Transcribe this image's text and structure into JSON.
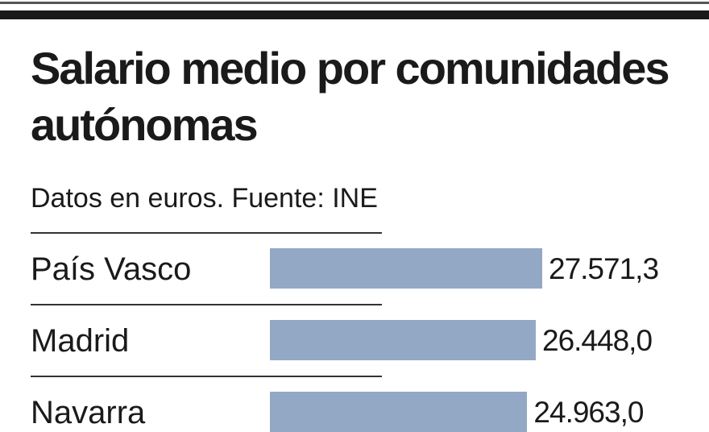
{
  "chart_data": {
    "type": "bar",
    "orientation": "horizontal",
    "title": "Salario medio por comunidades autónomas",
    "subtitle": "Datos en euros. Fuente: INE",
    "categories": [
      "País Vasco",
      "Madrid",
      "Navarra"
    ],
    "values": [
      27571.3,
      26448.0,
      24963.0
    ],
    "value_labels": [
      "27.571,3",
      "26.448,0",
      "24.963,0"
    ],
    "bar_color": "#93a8c4",
    "xlabel": "",
    "ylabel": ""
  }
}
